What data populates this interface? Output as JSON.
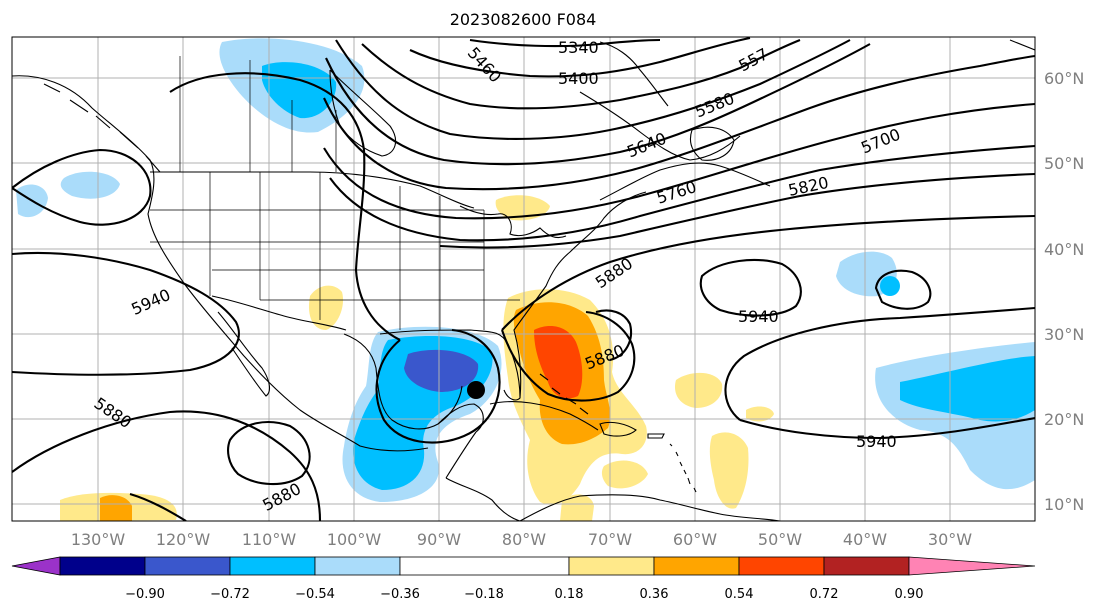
{
  "title": "2023082600 F084",
  "lon_labels": [
    "130°W",
    "120°W",
    "110°W",
    "100°W",
    "90°W",
    "80°W",
    "70°W",
    "60°W",
    "50°W",
    "40°W",
    "30°W"
  ],
  "lat_labels": [
    "60°N",
    "50°N",
    "40°N",
    "30°N",
    "20°N",
    "10°N"
  ],
  "colorbar": {
    "ticks": [
      "−0.90",
      "−0.72",
      "−0.54",
      "−0.36",
      "−0.18",
      "0.18",
      "0.36",
      "0.54",
      "0.72",
      "0.90"
    ],
    "colors": [
      "#9b32c9",
      "#00008b",
      "#3a57cc",
      "#00bfff",
      "#aadcfa",
      "#ffffff",
      "#ffe98a",
      "#ffa500",
      "#ff4500",
      "#b22222",
      "#ff83b4"
    ]
  },
  "contour_labels": {
    "c5340": "5340",
    "c5400": "5400",
    "c5460": "5460",
    "c557": "557",
    "c5580": "5580",
    "c5640": "5640",
    "c5700": "5700",
    "c5760": "5760",
    "c5820": "5820",
    "c5880_atl": "5880",
    "c5880_cen": "5880",
    "c5880_pac": "5880",
    "c5880_mex": "5880",
    "c5940_w": "5940",
    "c5940_mid": "5940",
    "c5940_e": "5940"
  },
  "marker": "storm-center-dot"
}
